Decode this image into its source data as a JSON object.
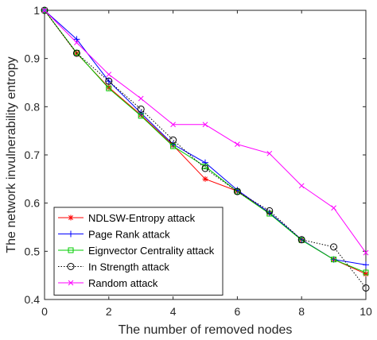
{
  "chart_data": {
    "type": "line",
    "title": "",
    "xlabel": "The number of removed nodes",
    "ylabel": "The network invulnerability entropy",
    "xlim": [
      0,
      10
    ],
    "ylim": [
      0.4,
      1.0
    ],
    "xticks": [
      0,
      2,
      4,
      6,
      8,
      10
    ],
    "yticks": [
      0.4,
      0.5,
      0.6,
      0.7,
      0.8,
      0.9,
      1.0
    ],
    "ytick_labels": [
      "0.4",
      "0.5",
      "0.6",
      "0.7",
      "0.8",
      "0.9",
      "1"
    ],
    "grid": false,
    "legend_position": "bottom-left",
    "x": [
      0,
      1,
      2,
      3,
      4,
      5,
      6,
      7,
      8,
      9,
      10
    ],
    "series": [
      {
        "name": "NDLSW-Entropy attack",
        "color": "#ff0000",
        "marker": "asterisk",
        "line": "solid",
        "values": [
          1.0,
          0.911,
          0.84,
          0.783,
          0.72,
          0.65,
          0.625,
          0.58,
          0.524,
          0.483,
          0.453
        ]
      },
      {
        "name": "Page Rank attack",
        "color": "#0000ff",
        "marker": "plus",
        "line": "solid",
        "values": [
          1.0,
          0.94,
          0.853,
          0.787,
          0.722,
          0.684,
          0.627,
          0.58,
          0.524,
          0.483,
          0.472
        ]
      },
      {
        "name": "Eignvector Centrality attack",
        "color": "#00cc00",
        "marker": "square",
        "line": "solid",
        "values": [
          1.0,
          0.912,
          0.838,
          0.781,
          0.718,
          0.676,
          0.624,
          0.578,
          0.523,
          0.483,
          0.456
        ]
      },
      {
        "name": "In Strength attack",
        "color": "#000000",
        "marker": "circle",
        "line": "dotted",
        "values": [
          1.0,
          0.911,
          0.853,
          0.795,
          0.731,
          0.672,
          0.624,
          0.584,
          0.524,
          0.509,
          0.424
        ]
      },
      {
        "name": "Random attack",
        "color": "#ff00ff",
        "marker": "x",
        "line": "solid",
        "values": [
          1.0,
          0.933,
          0.867,
          0.817,
          0.763,
          0.763,
          0.722,
          0.703,
          0.636,
          0.59,
          0.497
        ]
      }
    ]
  }
}
